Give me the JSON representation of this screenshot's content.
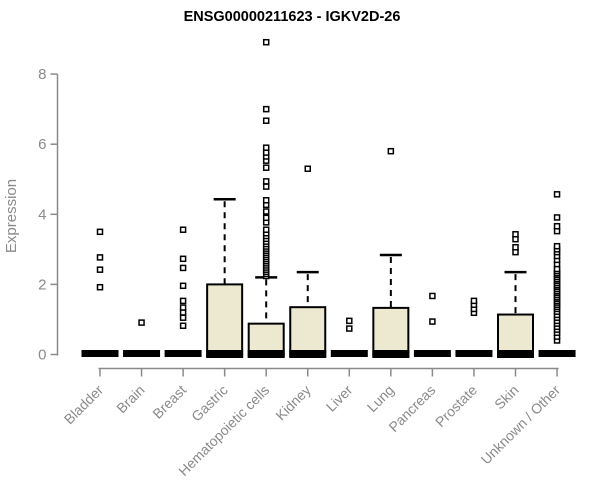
{
  "chart_data": {
    "type": "box",
    "title": "ENSG00000211623 - IGKV2D-26",
    "ylabel": "Expression",
    "xlabel": "",
    "yticks": [
      0,
      2,
      4,
      6,
      8
    ],
    "ylim": [
      0,
      9
    ],
    "grid": false,
    "legend": false,
    "categories": [
      "Bladder",
      "Brain",
      "Breast",
      "Gastric",
      "Hematopoietic cells",
      "Kidney",
      "Liver",
      "Lung",
      "Pancreas",
      "Prostate",
      "Skin",
      "Unknown / Other"
    ],
    "boxes": [
      {
        "category": "Bladder",
        "q1": 0,
        "median": 0,
        "q3": 0,
        "whisker_low": 0,
        "whisker_high": 0,
        "outliers": [
          1.92,
          2.42,
          2.77,
          3.5
        ]
      },
      {
        "category": "Brain",
        "q1": 0,
        "median": 0,
        "q3": 0,
        "whisker_low": 0,
        "whisker_high": 0,
        "outliers": [
          0.91
        ]
      },
      {
        "category": "Breast",
        "q1": 0,
        "median": 0,
        "q3": 0,
        "whisker_low": 0,
        "whisker_high": 0,
        "outliers": [
          0.82,
          1.05,
          1.2,
          1.34,
          1.53,
          1.96,
          2.47,
          2.73,
          3.56
        ]
      },
      {
        "category": "Gastric",
        "q1": 0,
        "median": 0,
        "q3": 2.0,
        "whisker_low": 0,
        "whisker_high": 4.43,
        "outliers": []
      },
      {
        "category": "Hematopoietic cells",
        "q1": 0,
        "median": 0,
        "q3": 0.88,
        "whisker_low": 0,
        "whisker_high": 2.2,
        "outliers": [
          2.24,
          2.3,
          2.36,
          2.42,
          2.48,
          2.54,
          2.6,
          2.66,
          2.72,
          2.78,
          2.84,
          2.9,
          2.96,
          3.02,
          3.08,
          3.15,
          3.22,
          3.3,
          3.38,
          3.46,
          3.56,
          3.77,
          3.9,
          4.08,
          4.27,
          4.4,
          4.79,
          4.94,
          5.33,
          5.53,
          5.65,
          5.76,
          5.9,
          6.67,
          7.0,
          8.91
        ]
      },
      {
        "category": "Kidney",
        "q1": 0,
        "median": 0,
        "q3": 1.35,
        "whisker_low": 0,
        "whisker_high": 2.35,
        "outliers": [
          5.3
        ]
      },
      {
        "category": "Liver",
        "q1": 0,
        "median": 0,
        "q3": 0,
        "whisker_low": 0,
        "whisker_high": 0,
        "outliers": [
          0.74,
          0.96
        ]
      },
      {
        "category": "Lung",
        "q1": 0,
        "median": 0,
        "q3": 1.33,
        "whisker_low": 0,
        "whisker_high": 2.84,
        "outliers": [
          5.8
        ]
      },
      {
        "category": "Pancreas",
        "q1": 0,
        "median": 0,
        "q3": 0,
        "whisker_low": 0,
        "whisker_high": 0,
        "outliers": [
          0.94,
          1.67
        ]
      },
      {
        "category": "Prostate",
        "q1": 0,
        "median": 0,
        "q3": 0,
        "whisker_low": 0,
        "whisker_high": 0,
        "outliers": [
          1.19,
          1.3,
          1.42,
          1.53
        ]
      },
      {
        "category": "Skin",
        "q1": 0,
        "median": 0,
        "q3": 1.14,
        "whisker_low": 0,
        "whisker_high": 2.35,
        "outliers": [
          2.92,
          3.06,
          3.29,
          3.43
        ]
      },
      {
        "category": "Unknown / Other",
        "q1": 0,
        "median": 0,
        "q3": 0,
        "whisker_low": 0,
        "whisker_high": 0,
        "outliers": [
          0.4,
          0.51,
          0.62,
          0.71,
          0.79,
          0.88,
          0.96,
          1.05,
          1.13,
          1.22,
          1.3,
          1.36,
          1.42,
          1.48,
          1.53,
          1.59,
          1.64,
          1.7,
          1.76,
          1.81,
          1.87,
          1.93,
          1.98,
          2.04,
          2.1,
          2.15,
          2.21,
          2.27,
          2.32,
          2.38,
          2.44,
          2.58,
          2.7,
          2.81,
          2.92,
          3.0,
          3.09,
          3.52,
          3.66,
          3.91,
          4.57
        ]
      }
    ],
    "colors": {
      "box_fill": "#EDE8D0",
      "box_stroke": "#000000",
      "median": "#000000",
      "whisker": "#000000",
      "outlier_fill": "#FFFFFF",
      "outlier_stroke": "#000000",
      "axis": "#8A8A8A",
      "title": "#000000",
      "background": "#FFFFFF"
    }
  }
}
